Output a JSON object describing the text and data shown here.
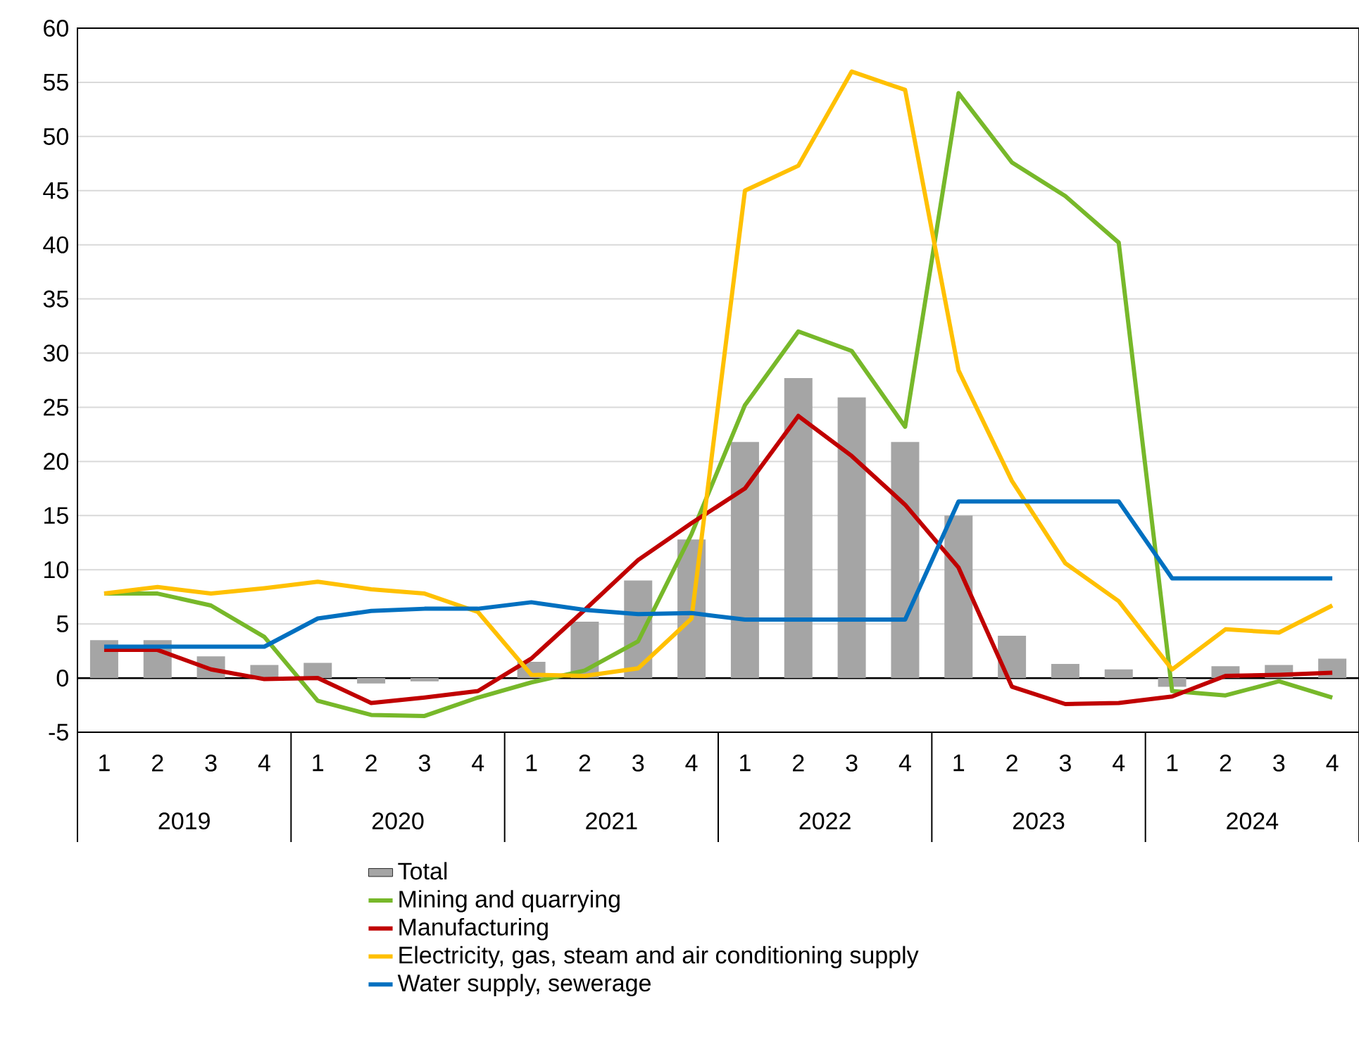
{
  "chart_data": {
    "type": "bar",
    "categories": [
      "1",
      "2",
      "3",
      "4",
      "1",
      "2",
      "3",
      "4",
      "1",
      "2",
      "3",
      "4",
      "1",
      "2",
      "3",
      "4",
      "1",
      "2",
      "3",
      "4",
      "1",
      "2",
      "3",
      "4"
    ],
    "annotations": [
      "2019",
      "2020",
      "2021",
      "2022",
      "2023",
      "2024"
    ],
    "series": [
      {
        "name": "Total",
        "color": "#a5a5a5",
        "values": [
          3.5,
          3.5,
          2.0,
          1.2,
          1.4,
          -0.5,
          -0.3,
          0,
          1.5,
          5.2,
          9.0,
          12.8,
          21.8,
          27.7,
          25.9,
          21.8,
          15.0,
          3.9,
          1.3,
          0.8,
          -0.8,
          1.1,
          1.2,
          1.8
        ]
      },
      {
        "name": "Mining and quarrying",
        "type": "line",
        "color": "#77b82a",
        "values": [
          7.8,
          7.8,
          6.7,
          3.8,
          -2.1,
          -3.4,
          -3.5,
          -1.8,
          -0.4,
          0.7,
          3.4,
          13.3,
          25.2,
          32.0,
          30.2,
          23.2,
          54.0,
          47.6,
          44.5,
          40.2,
          -1.2,
          -1.6,
          -0.3,
          -1.8
        ]
      },
      {
        "name": "Manufacturing",
        "type": "line",
        "color": "#c00000",
        "values": [
          2.6,
          2.6,
          0.8,
          -0.1,
          0.0,
          -2.3,
          -1.8,
          -1.2,
          1.8,
          6.3,
          10.9,
          14.3,
          17.5,
          24.2,
          20.5,
          16.0,
          10.2,
          -0.8,
          -2.4,
          -2.3,
          -1.7,
          0.2,
          0.3,
          0.5
        ]
      },
      {
        "name": "Electricity, gas, steam and air conditioning supply",
        "type": "line",
        "color": "#ffc000",
        "values": [
          7.8,
          8.4,
          7.8,
          8.3,
          8.9,
          8.2,
          7.8,
          6.1,
          0.3,
          0.2,
          0.9,
          5.5,
          45.0,
          47.3,
          56.0,
          54.3,
          28.4,
          18.2,
          10.6,
          7.1,
          0.8,
          4.5,
          4.2,
          6.7
        ]
      },
      {
        "name": "Water supply, sewerage",
        "type": "line",
        "color": "#0070c0",
        "values": [
          2.9,
          2.9,
          2.9,
          2.9,
          5.5,
          6.2,
          6.4,
          6.4,
          7.0,
          6.3,
          5.9,
          6.0,
          5.4,
          5.4,
          5.4,
          5.4,
          16.3,
          16.3,
          16.3,
          16.3,
          9.2,
          9.2,
          9.2,
          9.2
        ]
      }
    ],
    "ylim": [
      -5,
      60
    ],
    "yticks": [
      -5,
      0,
      5,
      10,
      15,
      20,
      25,
      30,
      35,
      40,
      45,
      50,
      55,
      60
    ],
    "grid": "y",
    "legend": "bottom"
  }
}
